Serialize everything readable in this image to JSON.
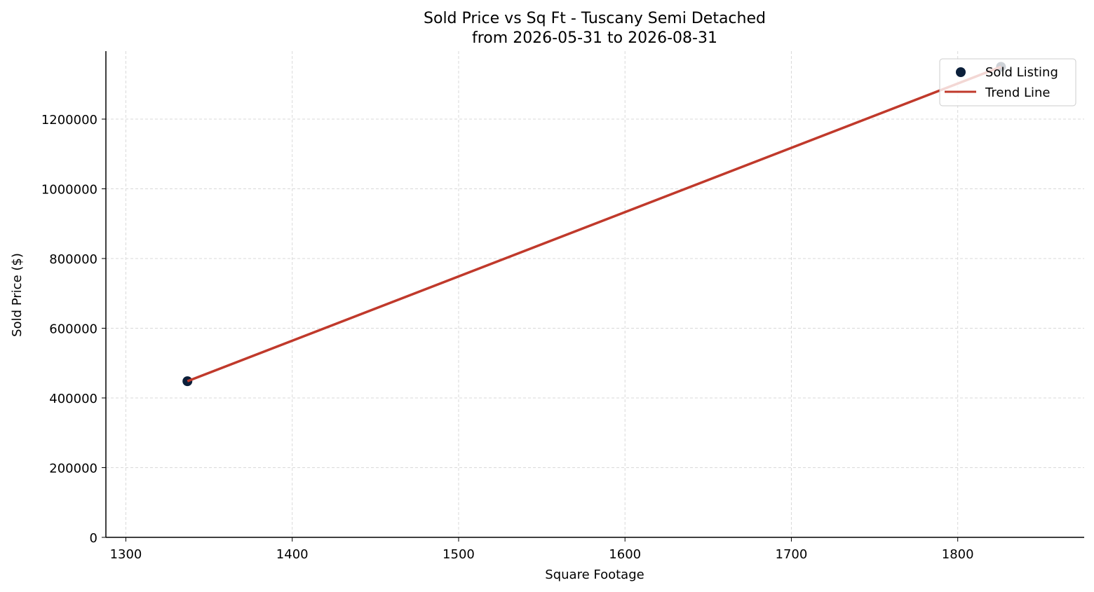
{
  "chart_data": {
    "type": "scatter",
    "title": "Sold Price vs Sq Ft - Tuscany Semi Detached",
    "subtitle": "from 2026-05-31 to 2026-08-31",
    "xlabel": "Square Footage",
    "ylabel": "Sold Price ($)",
    "xlim": [
      1288,
      1876
    ],
    "ylim": [
      0,
      1395000
    ],
    "xticks": [
      1300,
      1400,
      1500,
      1600,
      1700,
      1800
    ],
    "yticks": [
      0,
      200000,
      400000,
      600000,
      800000,
      1000000,
      1200000
    ],
    "xtick_labels": [
      "1300",
      "1400",
      "1500",
      "1600",
      "1700",
      "1800"
    ],
    "ytick_labels": [
      "0",
      "200000",
      "400000",
      "600000",
      "800000",
      "1000000",
      "1200000"
    ],
    "grid": true,
    "legend_position": "top-right",
    "series": [
      {
        "name": "Sold Listing",
        "kind": "scatter",
        "color": "#0b1f3a",
        "points": [
          {
            "x": 1337,
            "y": 448000
          },
          {
            "x": 1826,
            "y": 1350000
          }
        ]
      },
      {
        "name": "Trend Line",
        "kind": "line",
        "color": "#c0392b",
        "points": [
          {
            "x": 1337,
            "y": 448000
          },
          {
            "x": 1826,
            "y": 1350000
          }
        ]
      }
    ]
  }
}
